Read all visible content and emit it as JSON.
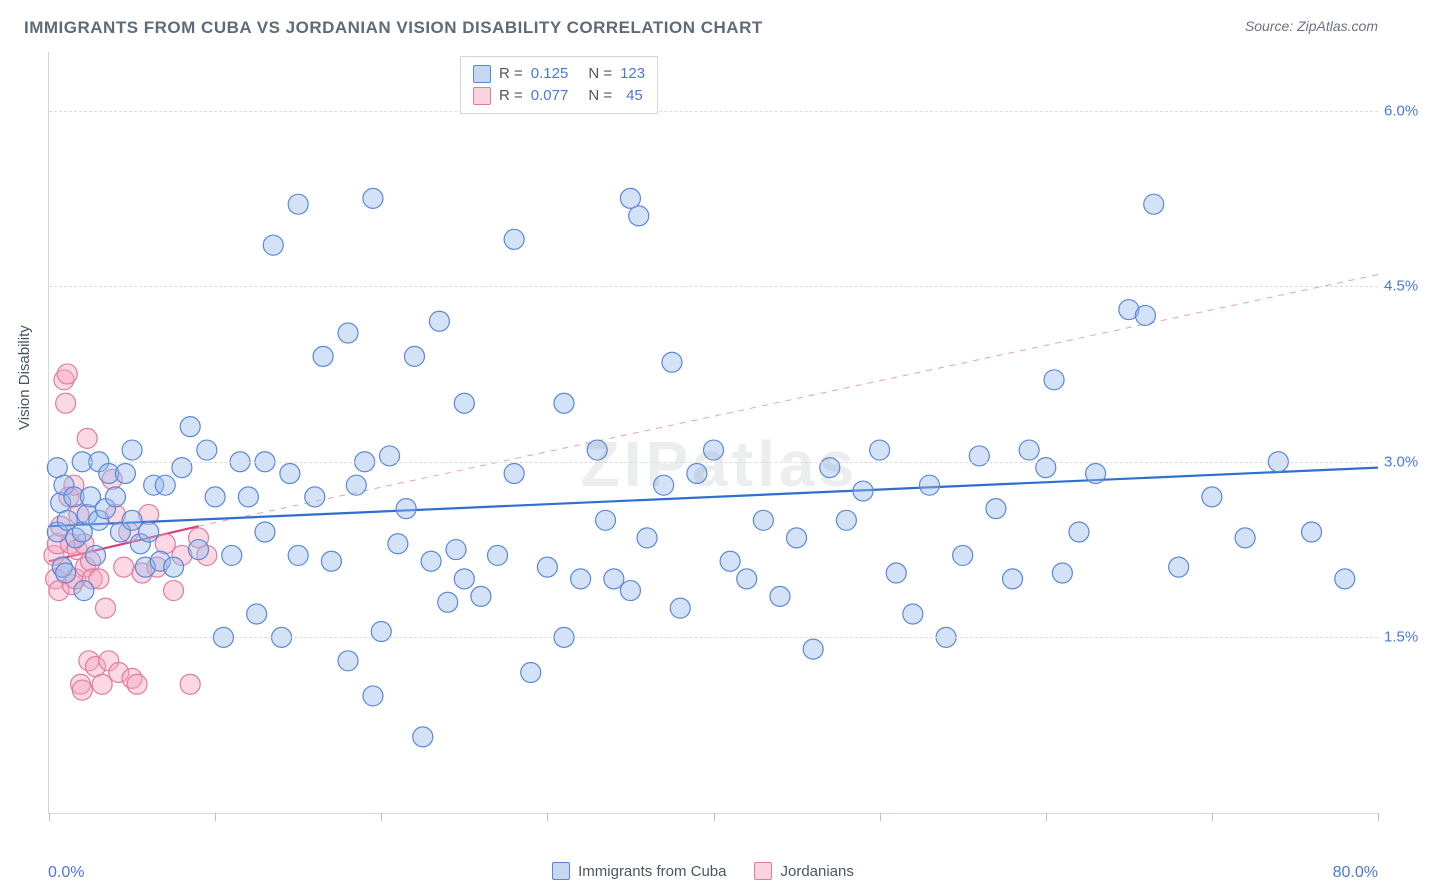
{
  "title": "IMMIGRANTS FROM CUBA VS JORDANIAN VISION DISABILITY CORRELATION CHART",
  "source": "Source: ZipAtlas.com",
  "watermark": "ZIPatlas",
  "chart": {
    "type": "scatter",
    "xlabel": "",
    "ylabel": "Vision Disability",
    "xlim": [
      0.0,
      80.0
    ],
    "ylim": [
      0.0,
      6.5
    ],
    "xlim_label_min": "0.0%",
    "xlim_label_max": "80.0%",
    "xtick_step": 10.0,
    "yticks": [
      1.5,
      3.0,
      4.5,
      6.0
    ],
    "ytick_labels": [
      "1.5%",
      "3.0%",
      "4.5%",
      "6.0%"
    ],
    "grid_color": "#d8dde3",
    "axis_color": "#d0d7de",
    "background_color": "#ffffff",
    "marker_radius": 10,
    "marker_stroke_width": 1.2,
    "series": [
      {
        "name": "Immigrants from Cuba",
        "key": "cuba",
        "color_fill": "rgba(150,185,235,0.42)",
        "color_stroke": "#5b88d6",
        "R": "0.125",
        "N": "123",
        "trend": {
          "x1": 0.0,
          "y1": 2.45,
          "x2": 80.0,
          "y2": 2.95,
          "stroke": "#2f6fd0",
          "width": 2.2,
          "dash": "none"
        },
        "trend_ext": null,
        "points": [
          [
            0.5,
            2.4
          ],
          [
            0.5,
            2.95
          ],
          [
            0.7,
            2.65
          ],
          [
            0.8,
            2.1
          ],
          [
            0.9,
            2.8
          ],
          [
            1.0,
            2.05
          ],
          [
            1.1,
            2.5
          ],
          [
            1.5,
            2.7
          ],
          [
            1.6,
            2.35
          ],
          [
            2.0,
            2.4
          ],
          [
            2.0,
            3.0
          ],
          [
            2.1,
            1.9
          ],
          [
            2.3,
            2.55
          ],
          [
            2.5,
            2.7
          ],
          [
            2.8,
            2.2
          ],
          [
            3.0,
            2.5
          ],
          [
            3.0,
            3.0
          ],
          [
            3.4,
            2.6
          ],
          [
            3.6,
            2.9
          ],
          [
            4.0,
            2.7
          ],
          [
            4.3,
            2.4
          ],
          [
            4.6,
            2.9
          ],
          [
            5.0,
            2.5
          ],
          [
            5.0,
            3.1
          ],
          [
            5.5,
            2.3
          ],
          [
            5.8,
            2.1
          ],
          [
            6.0,
            2.4
          ],
          [
            6.3,
            2.8
          ],
          [
            6.7,
            2.15
          ],
          [
            7.0,
            2.8
          ],
          [
            7.5,
            2.1
          ],
          [
            8.0,
            2.95
          ],
          [
            8.5,
            3.3
          ],
          [
            9.0,
            2.25
          ],
          [
            9.5,
            3.1
          ],
          [
            10.0,
            2.7
          ],
          [
            10.5,
            1.5
          ],
          [
            11.0,
            2.2
          ],
          [
            11.5,
            3.0
          ],
          [
            12.0,
            2.7
          ],
          [
            12.5,
            1.7
          ],
          [
            13.0,
            2.4
          ],
          [
            13.0,
            3.0
          ],
          [
            13.5,
            4.85
          ],
          [
            14.0,
            1.5
          ],
          [
            14.5,
            2.9
          ],
          [
            15.0,
            5.2
          ],
          [
            15.0,
            2.2
          ],
          [
            16.0,
            2.7
          ],
          [
            16.5,
            3.9
          ],
          [
            17.0,
            2.15
          ],
          [
            18.0,
            4.1
          ],
          [
            18.0,
            1.3
          ],
          [
            18.5,
            2.8
          ],
          [
            19.0,
            3.0
          ],
          [
            19.5,
            5.25
          ],
          [
            19.5,
            1.0
          ],
          [
            20.0,
            1.55
          ],
          [
            20.5,
            3.05
          ],
          [
            21.0,
            2.3
          ],
          [
            21.5,
            2.6
          ],
          [
            22.0,
            3.9
          ],
          [
            22.5,
            0.65
          ],
          [
            23.0,
            2.15
          ],
          [
            23.5,
            4.2
          ],
          [
            24.0,
            1.8
          ],
          [
            24.5,
            2.25
          ],
          [
            25.0,
            3.5
          ],
          [
            25.0,
            2.0
          ],
          [
            26.0,
            1.85
          ],
          [
            27.0,
            2.2
          ],
          [
            28.0,
            4.9
          ],
          [
            28.0,
            2.9
          ],
          [
            29.0,
            1.2
          ],
          [
            30.0,
            2.1
          ],
          [
            31.0,
            3.5
          ],
          [
            31.0,
            1.5
          ],
          [
            32.0,
            2.0
          ],
          [
            33.0,
            3.1
          ],
          [
            33.5,
            2.5
          ],
          [
            34.0,
            2.0
          ],
          [
            35.0,
            5.25
          ],
          [
            35.0,
            1.9
          ],
          [
            35.5,
            5.1
          ],
          [
            36.0,
            2.35
          ],
          [
            37.0,
            2.8
          ],
          [
            37.5,
            3.85
          ],
          [
            38.0,
            1.75
          ],
          [
            39.0,
            2.9
          ],
          [
            40.0,
            3.1
          ],
          [
            41.0,
            2.15
          ],
          [
            42.0,
            2.0
          ],
          [
            43.0,
            2.5
          ],
          [
            44.0,
            1.85
          ],
          [
            45.0,
            2.35
          ],
          [
            46.0,
            1.4
          ],
          [
            47.0,
            2.95
          ],
          [
            48.0,
            2.5
          ],
          [
            49.0,
            2.75
          ],
          [
            50.0,
            3.1
          ],
          [
            51.0,
            2.05
          ],
          [
            52.0,
            1.7
          ],
          [
            53.0,
            2.8
          ],
          [
            54.0,
            1.5
          ],
          [
            55.0,
            2.2
          ],
          [
            56.0,
            3.05
          ],
          [
            57.0,
            2.6
          ],
          [
            58.0,
            2.0
          ],
          [
            59.0,
            3.1
          ],
          [
            60.0,
            2.95
          ],
          [
            60.5,
            3.7
          ],
          [
            61.0,
            2.05
          ],
          [
            62.0,
            2.4
          ],
          [
            63.0,
            2.9
          ],
          [
            65.0,
            4.3
          ],
          [
            66.0,
            4.25
          ],
          [
            66.5,
            5.2
          ],
          [
            68.0,
            2.1
          ],
          [
            70.0,
            2.7
          ],
          [
            72.0,
            2.35
          ],
          [
            74.0,
            3.0
          ],
          [
            76.0,
            2.4
          ],
          [
            78.0,
            2.0
          ]
        ]
      },
      {
        "name": "Jordanians",
        "key": "jordanians",
        "color_fill": "rgba(245,165,190,0.42)",
        "color_stroke": "#e07ba0",
        "R": "0.077",
        "N": "45",
        "trend": {
          "x1": 0.0,
          "y1": 2.15,
          "x2": 9.0,
          "y2": 2.45,
          "stroke": "#d9407a",
          "width": 2.2,
          "dash": "none"
        },
        "trend_ext": {
          "x1": 9.0,
          "y1": 2.45,
          "x2": 80.0,
          "y2": 4.6,
          "stroke": "#e9a0b8",
          "width": 1,
          "dash": "6 6"
        },
        "points": [
          [
            0.3,
            2.2
          ],
          [
            0.4,
            2.0
          ],
          [
            0.5,
            2.3
          ],
          [
            0.6,
            1.9
          ],
          [
            0.7,
            2.45
          ],
          [
            0.8,
            2.1
          ],
          [
            0.9,
            3.7
          ],
          [
            1.0,
            3.5
          ],
          [
            1.1,
            3.75
          ],
          [
            1.2,
            2.7
          ],
          [
            1.3,
            2.3
          ],
          [
            1.4,
            1.95
          ],
          [
            1.5,
            2.8
          ],
          [
            1.6,
            2.0
          ],
          [
            1.7,
            2.25
          ],
          [
            1.8,
            2.55
          ],
          [
            1.9,
            1.1
          ],
          [
            2.0,
            1.05
          ],
          [
            2.1,
            2.3
          ],
          [
            2.2,
            2.1
          ],
          [
            2.3,
            3.2
          ],
          [
            2.4,
            1.3
          ],
          [
            2.5,
            2.15
          ],
          [
            2.6,
            2.0
          ],
          [
            2.8,
            1.25
          ],
          [
            3.0,
            2.0
          ],
          [
            3.2,
            1.1
          ],
          [
            3.4,
            1.75
          ],
          [
            3.6,
            1.3
          ],
          [
            3.8,
            2.85
          ],
          [
            4.0,
            2.55
          ],
          [
            4.2,
            1.2
          ],
          [
            4.5,
            2.1
          ],
          [
            4.8,
            2.4
          ],
          [
            5.0,
            1.15
          ],
          [
            5.3,
            1.1
          ],
          [
            5.6,
            2.05
          ],
          [
            6.0,
            2.55
          ],
          [
            6.5,
            2.1
          ],
          [
            7.0,
            2.3
          ],
          [
            7.5,
            1.9
          ],
          [
            8.0,
            2.2
          ],
          [
            8.5,
            1.1
          ],
          [
            9.0,
            2.35
          ],
          [
            9.5,
            2.2
          ]
        ]
      }
    ],
    "legend_bottom": [
      {
        "key": "cuba",
        "label": "Immigrants from Cuba"
      },
      {
        "key": "jordanians",
        "label": "Jordanians"
      }
    ]
  }
}
